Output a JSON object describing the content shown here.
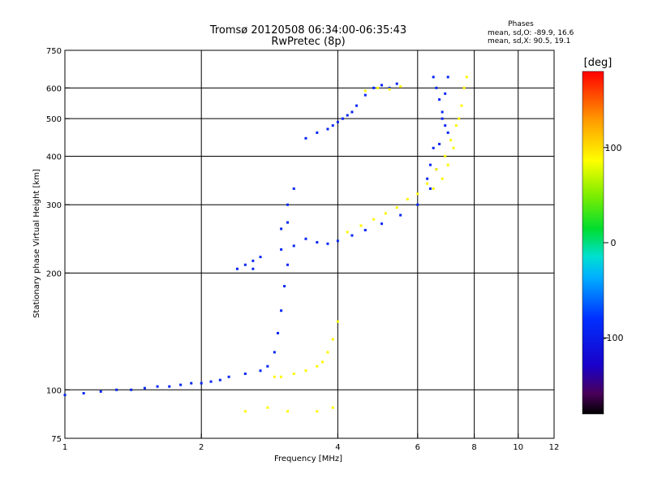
{
  "chart_data": {
    "type": "scatter",
    "title": "Tromsø 20120508 06:34:00-06:35:43",
    "subtitle": "RwPretec (8p)",
    "xlabel": "Frequency [MHz]",
    "ylabel": "Stationary phase Virtual Height [km]",
    "x_scale": "log",
    "y_scale": "log",
    "xlim": [
      1,
      12
    ],
    "ylim": [
      75,
      750
    ],
    "x_ticks": [
      1,
      2,
      4,
      6,
      8,
      10,
      12
    ],
    "y_ticks": [
      75,
      100,
      200,
      300,
      400,
      500,
      600,
      750
    ],
    "x_grid": [
      2,
      4,
      6,
      8,
      10
    ],
    "y_grid": [
      100,
      200,
      300,
      400,
      500,
      600
    ],
    "grid": true,
    "phase_stats": {
      "heading": "Phases",
      "line_o": "mean, sd,O: -89.9, 16.6",
      "line_x": "mean, sd,X:  90.5, 19.1"
    },
    "colorbar": {
      "label": "[deg]",
      "min": -180,
      "max": 180,
      "ticks": [
        100,
        0,
        -100
      ],
      "tick_labels": [
        "100",
        "0",
        "-100"
      ]
    },
    "series": [
      {
        "color_phase": -90,
        "points": [
          [
            1.0,
            97
          ],
          [
            1.1,
            98
          ],
          [
            1.2,
            99
          ],
          [
            1.3,
            100
          ],
          [
            1.4,
            100
          ],
          [
            1.5,
            101
          ],
          [
            1.6,
            102
          ],
          [
            1.7,
            102
          ],
          [
            1.8,
            103
          ],
          [
            1.9,
            104
          ],
          [
            2.0,
            104
          ],
          [
            2.1,
            105
          ],
          [
            2.2,
            106
          ],
          [
            2.3,
            108
          ],
          [
            2.5,
            110
          ],
          [
            2.7,
            112
          ],
          [
            2.8,
            115
          ],
          [
            2.9,
            125
          ],
          [
            2.95,
            140
          ],
          [
            3.0,
            160
          ],
          [
            3.05,
            185
          ],
          [
            3.1,
            210
          ],
          [
            3.2,
            235
          ],
          [
            3.4,
            245
          ],
          [
            3.6,
            240
          ],
          [
            3.8,
            238
          ],
          [
            4.0,
            242
          ],
          [
            4.3,
            250
          ],
          [
            4.6,
            258
          ],
          [
            5.0,
            268
          ],
          [
            5.5,
            282
          ],
          [
            6.0,
            300
          ],
          [
            6.4,
            330
          ],
          [
            6.6,
            370
          ],
          [
            6.7,
            430
          ],
          [
            6.8,
            500
          ],
          [
            6.9,
            580
          ],
          [
            7.0,
            640
          ],
          [
            3.0,
            260
          ],
          [
            3.1,
            300
          ],
          [
            3.2,
            330
          ],
          [
            3.0,
            230
          ],
          [
            3.1,
            270
          ],
          [
            2.4,
            205
          ],
          [
            2.5,
            210
          ],
          [
            2.6,
            215
          ],
          [
            2.7,
            220
          ],
          [
            2.6,
            205
          ],
          [
            3.4,
            445
          ],
          [
            3.6,
            460
          ],
          [
            3.8,
            470
          ],
          [
            4.0,
            490
          ],
          [
            4.2,
            510
          ],
          [
            4.4,
            540
          ],
          [
            4.6,
            575
          ],
          [
            4.8,
            600
          ],
          [
            5.0,
            610
          ],
          [
            5.2,
            600
          ],
          [
            5.4,
            615
          ],
          [
            4.3,
            520
          ],
          [
            4.1,
            500
          ],
          [
            3.9,
            480
          ],
          [
            6.5,
            640
          ],
          [
            6.6,
            600
          ],
          [
            6.7,
            560
          ],
          [
            6.8,
            520
          ],
          [
            6.9,
            480
          ],
          [
            7.0,
            460
          ],
          [
            6.5,
            420
          ],
          [
            6.4,
            380
          ],
          [
            6.3,
            350
          ]
        ]
      },
      {
        "color_phase": 90,
        "points": [
          [
            2.9,
            108
          ],
          [
            3.0,
            108
          ],
          [
            3.2,
            110
          ],
          [
            3.4,
            112
          ],
          [
            3.6,
            115
          ],
          [
            3.8,
            125
          ],
          [
            3.7,
            118
          ],
          [
            3.9,
            135
          ],
          [
            4.0,
            150
          ],
          [
            4.2,
            255
          ],
          [
            4.5,
            265
          ],
          [
            4.8,
            275
          ],
          [
            5.1,
            285
          ],
          [
            5.4,
            295
          ],
          [
            5.7,
            310
          ],
          [
            6.0,
            320
          ],
          [
            6.3,
            340
          ],
          [
            6.6,
            370
          ],
          [
            6.9,
            400
          ],
          [
            7.1,
            440
          ],
          [
            7.3,
            480
          ],
          [
            7.5,
            540
          ],
          [
            7.6,
            600
          ],
          [
            7.7,
            640
          ],
          [
            7.0,
            380
          ],
          [
            7.2,
            420
          ],
          [
            7.4,
            500
          ],
          [
            6.8,
            350
          ],
          [
            6.5,
            330
          ],
          [
            4.6,
            590
          ],
          [
            4.9,
            600
          ],
          [
            5.2,
            595
          ],
          [
            5.5,
            605
          ],
          [
            2.5,
            88
          ],
          [
            2.8,
            90
          ],
          [
            3.1,
            88
          ],
          [
            3.6,
            88
          ],
          [
            3.9,
            90
          ]
        ]
      }
    ]
  }
}
